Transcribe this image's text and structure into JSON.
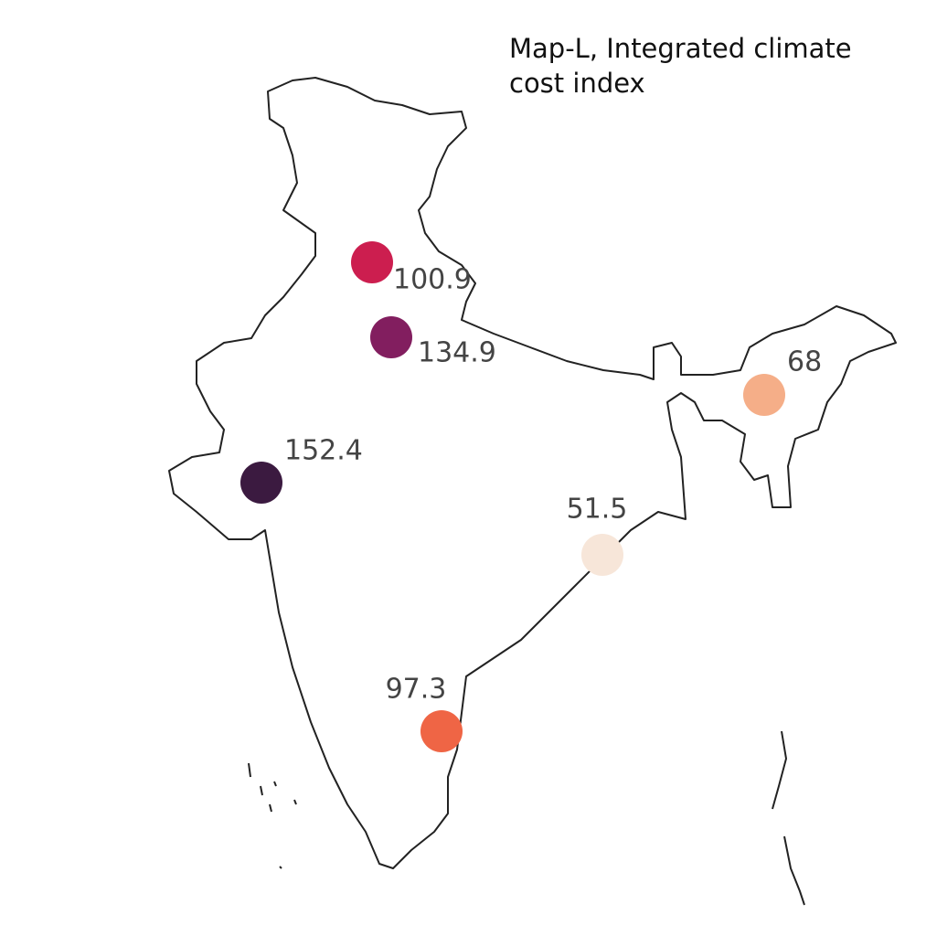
{
  "chart_data": {
    "type": "bubble-map",
    "title": "Map-L, Integrated climate cost index",
    "values": [
      100.9,
      134.9,
      152.4,
      51.5,
      68,
      97.3
    ],
    "colors": [
      "#cc1e4f",
      "#821e5f",
      "#3b1a40",
      "#f7e6d9",
      "#f5ae88",
      "#ef6545"
    ]
  }
}
